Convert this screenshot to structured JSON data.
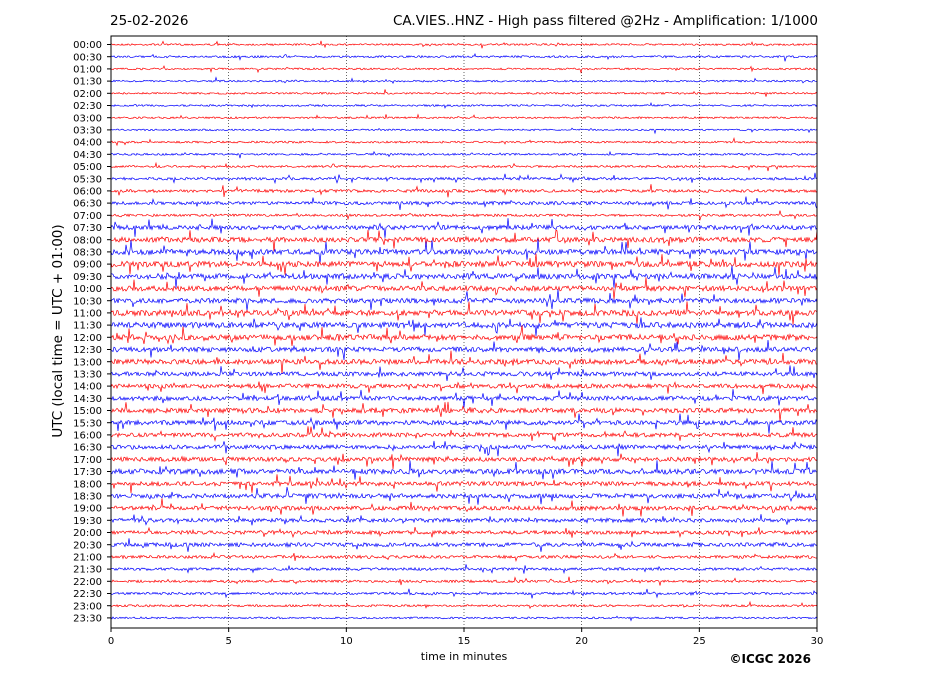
{
  "header": {
    "date": "25-02-2026",
    "title": "CA.VIES..HNZ - High pass filtered @2Hz - Amplification: 1/1000"
  },
  "footer": {
    "copyright": "©ICGC 2026"
  },
  "chart_data": {
    "type": "line",
    "title": "CA.VIES..HNZ - High pass filtered @2Hz - Amplification: 1/1000",
    "xlabel": "time in minutes",
    "ylabel": "UTC (local time = UTC + 01:00)",
    "xlim": [
      0,
      30
    ],
    "xticks": [
      0,
      5,
      10,
      15,
      20,
      25,
      30
    ],
    "grid": "vertical dotted at 5,10,15,20,25",
    "colors": {
      "red": "#ff0000",
      "blue": "#0000ff"
    },
    "rows": [
      {
        "label": "00:00",
        "color": "red",
        "level": 0.1
      },
      {
        "label": "00:30",
        "color": "blue",
        "level": 0.15
      },
      {
        "label": "01:00",
        "color": "red",
        "level": 0.1
      },
      {
        "label": "01:30",
        "color": "blue",
        "level": 0.1
      },
      {
        "label": "02:00",
        "color": "red",
        "level": 0.1
      },
      {
        "label": "02:30",
        "color": "blue",
        "level": 0.1
      },
      {
        "label": "03:00",
        "color": "red",
        "level": 0.1
      },
      {
        "label": "03:30",
        "color": "blue",
        "level": 0.08
      },
      {
        "label": "04:00",
        "color": "red",
        "level": 0.12
      },
      {
        "label": "04:30",
        "color": "blue",
        "level": 0.12
      },
      {
        "label": "05:00",
        "color": "red",
        "level": 0.15
      },
      {
        "label": "05:30",
        "color": "blue",
        "level": 0.25
      },
      {
        "label": "06:00",
        "color": "red",
        "level": 0.3
      },
      {
        "label": "06:30",
        "color": "blue",
        "level": 0.35
      },
      {
        "label": "07:00",
        "color": "red",
        "level": 0.2
      },
      {
        "label": "07:30",
        "color": "blue",
        "level": 0.55
      },
      {
        "label": "08:00",
        "color": "red",
        "level": 0.65
      },
      {
        "label": "08:30",
        "color": "blue",
        "level": 0.7
      },
      {
        "label": "09:00",
        "color": "red",
        "level": 0.75
      },
      {
        "label": "09:30",
        "color": "blue",
        "level": 0.7
      },
      {
        "label": "10:00",
        "color": "red",
        "level": 0.65
      },
      {
        "label": "10:30",
        "color": "blue",
        "level": 0.6
      },
      {
        "label": "11:00",
        "color": "red",
        "level": 0.75
      },
      {
        "label": "11:30",
        "color": "blue",
        "level": 0.75
      },
      {
        "label": "12:00",
        "color": "red",
        "level": 0.75
      },
      {
        "label": "12:30",
        "color": "blue",
        "level": 0.6
      },
      {
        "label": "13:00",
        "color": "red",
        "level": 0.65
      },
      {
        "label": "13:30",
        "color": "blue",
        "level": 0.5
      },
      {
        "label": "14:00",
        "color": "red",
        "level": 0.5
      },
      {
        "label": "14:30",
        "color": "blue",
        "level": 0.55
      },
      {
        "label": "15:00",
        "color": "red",
        "level": 0.6
      },
      {
        "label": "15:30",
        "color": "blue",
        "level": 0.55
      },
      {
        "label": "16:00",
        "color": "red",
        "level": 0.5
      },
      {
        "label": "16:30",
        "color": "blue",
        "level": 0.5
      },
      {
        "label": "17:00",
        "color": "red",
        "level": 0.5
      },
      {
        "label": "17:30",
        "color": "blue",
        "level": 0.65
      },
      {
        "label": "18:00",
        "color": "red",
        "level": 0.5
      },
      {
        "label": "18:30",
        "color": "blue",
        "level": 0.55
      },
      {
        "label": "19:00",
        "color": "red",
        "level": 0.5
      },
      {
        "label": "19:30",
        "color": "blue",
        "level": 0.45
      },
      {
        "label": "20:00",
        "color": "red",
        "level": 0.4
      },
      {
        "label": "20:30",
        "color": "blue",
        "level": 0.45
      },
      {
        "label": "21:00",
        "color": "red",
        "level": 0.3
      },
      {
        "label": "21:30",
        "color": "blue",
        "level": 0.25
      },
      {
        "label": "22:00",
        "color": "red",
        "level": 0.2
      },
      {
        "label": "22:30",
        "color": "blue",
        "level": 0.2
      },
      {
        "label": "23:00",
        "color": "red",
        "level": 0.15
      },
      {
        "label": "23:30",
        "color": "blue",
        "level": 0.1
      }
    ]
  }
}
